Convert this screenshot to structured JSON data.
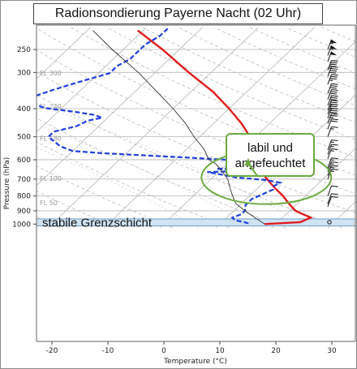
{
  "title": "Radionsondierung Payerne Nacht (02 Uhr)",
  "chart_data": {
    "type": "line",
    "diagram": "skew-t log-p",
    "xlabel": "Temperature (°C)",
    "ylabel": "Pressure (hPa)",
    "xlim": [
      -23,
      33
    ],
    "ylim": [
      1030,
      210
    ],
    "x_ticks": [
      -20,
      -10,
      0,
      10,
      20,
      30
    ],
    "y_ticks": [
      250,
      300,
      400,
      500,
      600,
      700,
      800,
      900,
      1000
    ],
    "flight_levels": [
      {
        "label": "FL 300",
        "p": 301
      },
      {
        "label": "FL 240",
        "p": 393
      },
      {
        "label": "FL 180",
        "p": 506
      },
      {
        "label": "FL 100",
        "p": 697
      },
      {
        "label": "FL 50",
        "p": 843
      }
    ],
    "series": [
      {
        "kind": "temperature",
        "color": "#e01b1b",
        "points": [
          [
            1000,
            18
          ],
          [
            985,
            24
          ],
          [
            950,
            25
          ],
          [
            925,
            23
          ],
          [
            900,
            21
          ],
          [
            850,
            18.5
          ],
          [
            800,
            16
          ],
          [
            750,
            13
          ],
          [
            700,
            10
          ],
          [
            650,
            7
          ],
          [
            600,
            4.5
          ],
          [
            550,
            3
          ],
          [
            500,
            -1
          ],
          [
            450,
            -5
          ],
          [
            400,
            -10
          ],
          [
            350,
            -16
          ],
          [
            300,
            -24
          ],
          [
            250,
            -33
          ],
          [
            215,
            -41
          ]
        ]
      },
      {
        "kind": "dewpoint",
        "color": "#1f3fe0",
        "points": [
          [
            995,
            15
          ],
          [
            985,
            14
          ],
          [
            970,
            12
          ],
          [
            950,
            11
          ],
          [
            925,
            12
          ],
          [
            900,
            12
          ],
          [
            860,
            11
          ],
          [
            820,
            11
          ],
          [
            790,
            12
          ],
          [
            760,
            13
          ],
          [
            740,
            12.5
          ],
          [
            720,
            13
          ],
          [
            705,
            10
          ],
          [
            690,
            4
          ],
          [
            675,
            1
          ],
          [
            662,
            -2
          ],
          [
            658,
            2
          ],
          [
            650,
            4
          ],
          [
            645,
            -1
          ],
          [
            638,
            3
          ],
          [
            630,
            6
          ],
          [
            625,
            3
          ],
          [
            620,
            6
          ],
          [
            612,
            1
          ],
          [
            600,
            -1
          ],
          [
            590,
            -8
          ],
          [
            580,
            -16
          ],
          [
            570,
            -24
          ],
          [
            560,
            -30
          ],
          [
            540,
            -33
          ],
          [
            520,
            -35
          ],
          [
            500,
            -37
          ],
          [
            480,
            -37
          ],
          [
            460,
            -34
          ],
          [
            440,
            -33
          ],
          [
            430,
            -31
          ],
          [
            420,
            -33
          ],
          [
            410,
            -37
          ],
          [
            398,
            -43
          ],
          [
            385,
            -46
          ],
          [
            370,
            -48
          ],
          [
            345,
            -45
          ],
          [
            325,
            -42
          ],
          [
            302,
            -38
          ],
          [
            285,
            -38
          ],
          [
            270,
            -37
          ],
          [
            255,
            -37
          ],
          [
            240,
            -37
          ],
          [
            225,
            -36
          ],
          [
            210,
            -36
          ]
        ]
      },
      {
        "kind": "parcel",
        "color": "#333333",
        "points": [
          [
            1000,
            18
          ],
          [
            950,
            15
          ],
          [
            900,
            12
          ],
          [
            850,
            9
          ],
          [
            800,
            7
          ],
          [
            750,
            5
          ],
          [
            700,
            3
          ],
          [
            650,
            0
          ],
          [
            620,
            -2
          ],
          [
            600,
            -4
          ],
          [
            550,
            -7
          ],
          [
            500,
            -11
          ],
          [
            450,
            -15
          ],
          [
            400,
            -20
          ],
          [
            350,
            -26
          ],
          [
            300,
            -33
          ],
          [
            250,
            -42
          ],
          [
            215,
            -49
          ]
        ]
      }
    ],
    "wind_barbs": [
      {
        "p": 250,
        "kt": 55
      },
      {
        "p": 262,
        "kt": 55
      },
      {
        "p": 275,
        "kt": 50
      },
      {
        "p": 295,
        "kt": 45
      },
      {
        "p": 310,
        "kt": 40
      },
      {
        "p": 330,
        "kt": 35
      },
      {
        "p": 355,
        "kt": 30
      },
      {
        "p": 372,
        "kt": 30
      },
      {
        "p": 390,
        "kt": 30
      },
      {
        "p": 405,
        "kt": 35
      },
      {
        "p": 418,
        "kt": 35
      },
      {
        "p": 432,
        "kt": 30
      },
      {
        "p": 450,
        "kt": 25
      },
      {
        "p": 470,
        "kt": 20
      },
      {
        "p": 500,
        "kt": 15
      },
      {
        "p": 555,
        "kt": 15
      },
      {
        "p": 575,
        "kt": 15
      },
      {
        "p": 595,
        "kt": 15
      },
      {
        "p": 640,
        "kt": 15
      },
      {
        "p": 660,
        "kt": 15
      },
      {
        "p": 680,
        "kt": 15
      },
      {
        "p": 700,
        "kt": 15
      },
      {
        "p": 800,
        "kt": 10
      },
      {
        "p": 850,
        "kt": 10
      },
      {
        "p": 870,
        "kt": 10
      }
    ],
    "annotations": [
      {
        "kind": "label-box",
        "lines": [
          "labil und",
          "angefeuchtet"
        ],
        "color": "#6aab3e",
        "points_to_p": 600
      },
      {
        "kind": "ellipse",
        "color": "#6aab3e",
        "center_p": 690,
        "center_t": 12
      },
      {
        "kind": "band",
        "label": "stabile Grenzschicht",
        "color": "#cfe3f3",
        "p_top": 960,
        "p_bottom": 1015
      }
    ]
  }
}
